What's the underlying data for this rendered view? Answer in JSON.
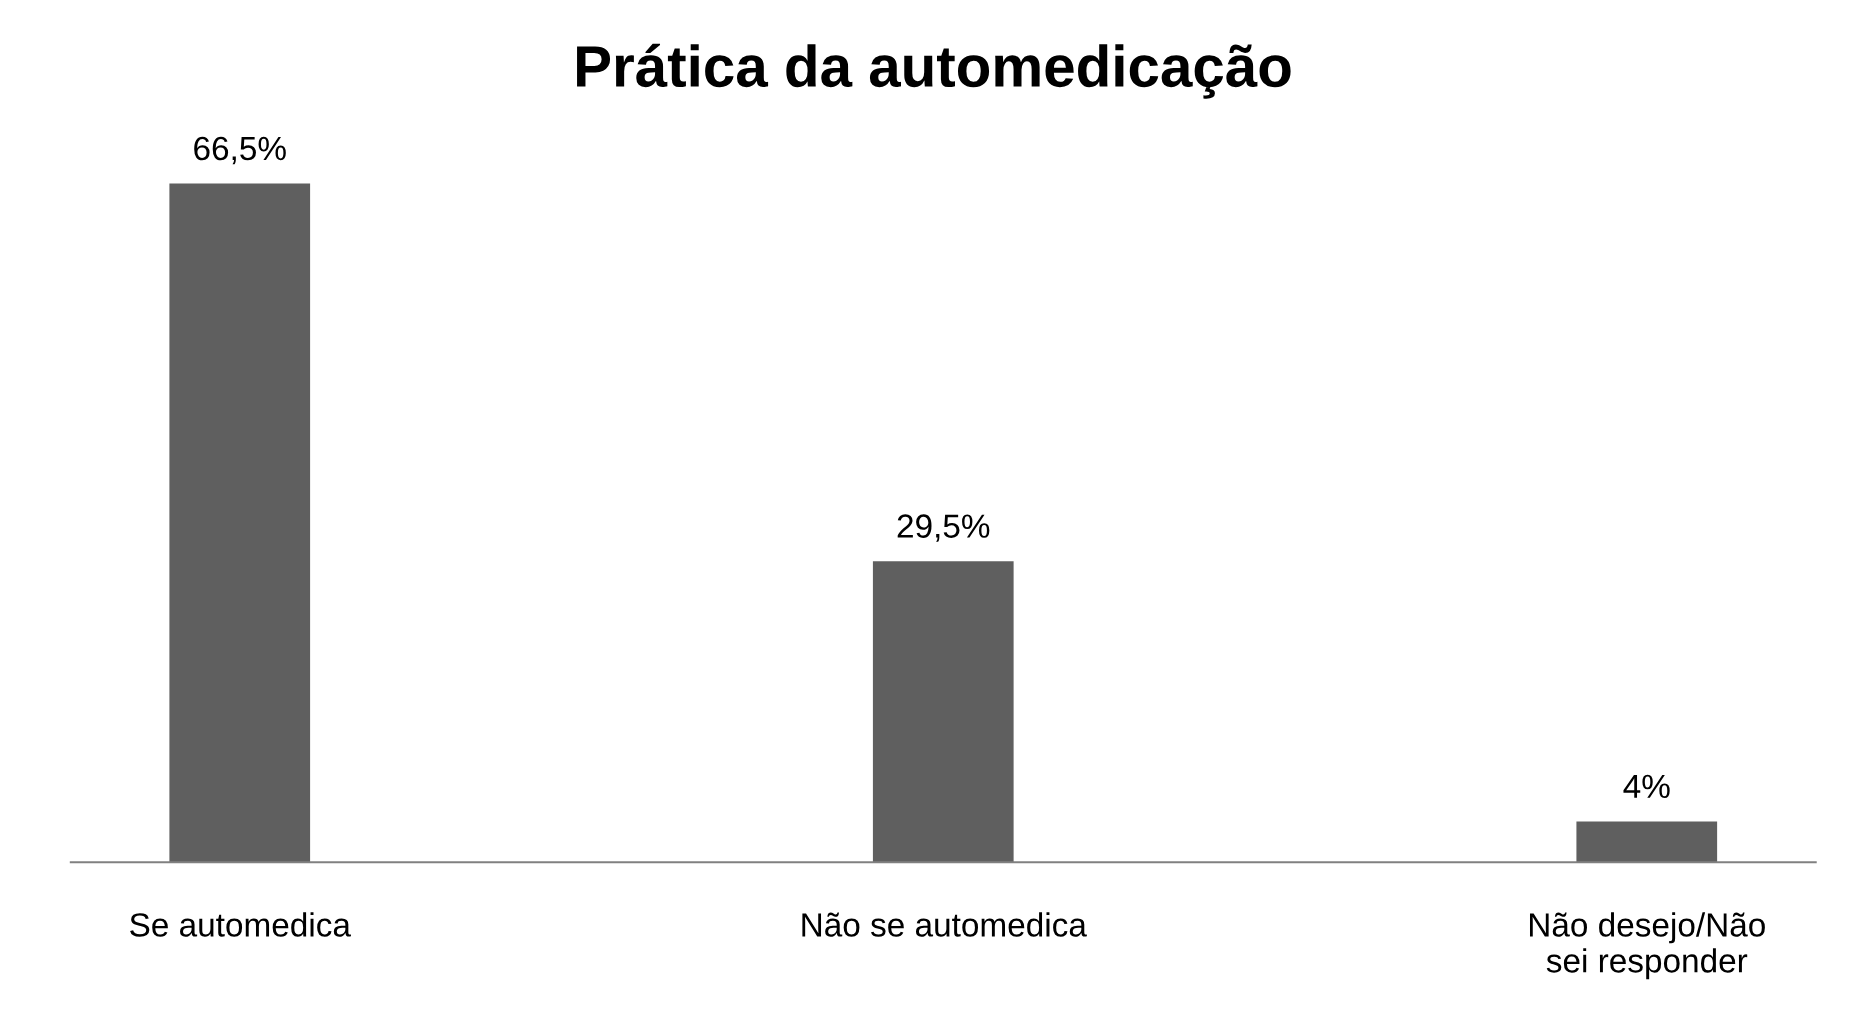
{
  "chart_data": {
    "type": "bar",
    "title": "Prática da automedicação",
    "categories": [
      "Se automedica",
      "Não se automedica",
      "Não desejo/Não\nsei responder"
    ],
    "values": [
      66.5,
      29.5,
      4
    ],
    "value_labels": [
      "66,5%",
      "29,5%",
      "4%"
    ],
    "color": "#5f5f5f",
    "grid": false,
    "legend": false
  }
}
